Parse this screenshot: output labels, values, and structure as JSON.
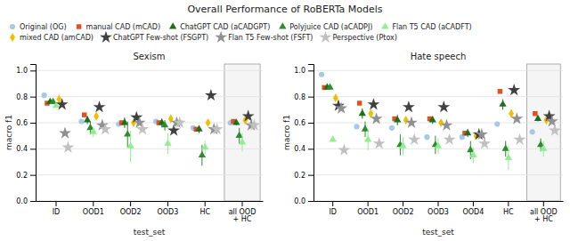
{
  "title": "Overall Performance of RoBERTa Models",
  "chart_data": [
    {
      "type": "scatter",
      "title": "Sexism",
      "xlabel": "test_set",
      "ylabel": "macro f1",
      "categories": [
        "ID",
        "OOD1",
        "OOD2",
        "OOD3",
        "HC",
        "all OOD\n+ HC"
      ],
      "ylim": [
        0.0,
        1.05
      ],
      "yticks": [
        {
          "value": 0.0,
          "label": "0.0"
        },
        0.2,
        0.4,
        0.6,
        0.8,
        {
          "value": 1.0,
          "label": "1.0"
        }
      ],
      "grid": true,
      "series": [
        {
          "name": "Original (OG)",
          "color": "#a8c8e8",
          "marker": "circle",
          "values": [
            0.81,
            0.61,
            0.59,
            0.61,
            0.56,
            0.6
          ],
          "errors": [
            0.0,
            0.0,
            0.0,
            0.0,
            0.0,
            0.0
          ]
        },
        {
          "name": "manual CAD (mCAD)",
          "color": "#e05020",
          "marker": "square",
          "values": [
            0.75,
            0.66,
            0.6,
            0.6,
            0.55,
            0.61
          ],
          "errors": [
            0.0,
            0.0,
            0.0,
            0.0,
            0.0,
            0.0
          ]
        },
        {
          "name": "ChatGPT CAD (aCADGPT)",
          "color": "#1e6e1e",
          "marker": "triangle",
          "values": [
            0.76,
            0.62,
            0.6,
            0.6,
            0.55,
            0.6
          ],
          "errors": [
            0.0,
            0.03,
            0.04,
            0.03,
            0.03,
            0.02
          ]
        },
        {
          "name": "Polyjuice CAD (aCADPJ)",
          "color": "#2e8b2e",
          "marker": "triangle",
          "values": [
            0.76,
            0.56,
            0.51,
            0.58,
            0.35,
            0.5
          ],
          "errors": [
            0.0,
            0.05,
            0.1,
            0.04,
            0.08,
            0.06
          ]
        },
        {
          "name": "Flan T5 CAD (aCADFT)",
          "color": "#90ee90",
          "marker": "triangle",
          "values": [
            0.73,
            0.53,
            0.42,
            0.44,
            0.41,
            0.45
          ],
          "errors": [
            0.0,
            0.04,
            0.12,
            0.08,
            0.05,
            0.07
          ]
        },
        {
          "name": "mixed CAD (amCAD)",
          "color": "#f0c000",
          "marker": "diamond",
          "values": [
            0.78,
            0.65,
            0.6,
            0.63,
            0.6,
            0.62
          ],
          "errors": [
            0.0,
            0.02,
            0.02,
            0.02,
            0.02,
            0.01
          ]
        },
        {
          "name": "ChatGPT Few-shot (FSGPT)",
          "color": "#404040",
          "marker": "star",
          "values": [
            0.74,
            0.72,
            0.64,
            0.54,
            0.81,
            0.65
          ],
          "errors": [
            0.0,
            0.0,
            0.0,
            0.0,
            0.0,
            0.0
          ]
        },
        {
          "name": "Flan T5 Few-shot (FSFT)",
          "color": "#909090",
          "marker": "star",
          "values": [
            0.52,
            0.58,
            0.6,
            0.6,
            0.55,
            0.58
          ],
          "errors": [
            0.0,
            0.0,
            0.0,
            0.0,
            0.0,
            0.0
          ]
        },
        {
          "name": "Perspective (Ptox)",
          "color": "#c0c0c0",
          "marker": "star",
          "values": [
            0.41,
            0.55,
            0.55,
            0.6,
            0.55,
            0.58
          ],
          "errors": [
            0.0,
            0.0,
            0.0,
            0.0,
            0.0,
            0.0
          ]
        }
      ]
    },
    {
      "type": "scatter",
      "title": "Hate speech",
      "xlabel": "test_set",
      "ylabel": "macro f1",
      "categories": [
        "ID",
        "OOD1",
        "OOD2",
        "OOD3",
        "OOD4",
        "HC",
        "all OOD\n+ HC"
      ],
      "ylim": [
        0.0,
        1.05
      ],
      "yticks": [
        {
          "value": 0.0,
          "label": "0.0"
        },
        0.2,
        0.4,
        0.6,
        0.8,
        {
          "value": 1.0,
          "label": "1.0"
        }
      ],
      "grid": true,
      "series": [
        {
          "color": "#a8c8e8",
          "marker": "circle",
          "values": [
            0.97,
            0.57,
            0.56,
            0.49,
            0.49,
            0.59,
            0.53
          ],
          "errors": [
            0.0,
            0.0,
            0.0,
            0.0,
            0.0,
            0.0,
            0.0
          ]
        },
        {
          "color": "#e05020",
          "marker": "square",
          "values": [
            0.87,
            0.75,
            0.63,
            0.63,
            0.52,
            0.84,
            0.67
          ],
          "errors": [
            0.0,
            0.0,
            0.0,
            0.0,
            0.0,
            0.0,
            0.0
          ]
        },
        {
          "color": "#1e6e1e",
          "marker": "triangle",
          "values": [
            0.87,
            0.67,
            0.62,
            0.62,
            0.52,
            0.74,
            0.63
          ],
          "errors": [
            0.0,
            0.04,
            0.04,
            0.03,
            0.03,
            0.04,
            0.02
          ]
        },
        {
          "color": "#2e8b2e",
          "marker": "triangle",
          "values": [
            0.87,
            0.55,
            0.43,
            0.43,
            0.39,
            0.4,
            0.43
          ],
          "errors": [
            0.0,
            0.06,
            0.08,
            0.07,
            0.07,
            0.06,
            0.05
          ]
        },
        {
          "color": "#90ee90",
          "marker": "triangle",
          "values": [
            0.47,
            0.47,
            0.42,
            0.42,
            0.35,
            0.33,
            0.4
          ],
          "errors": [
            0.0,
            0.08,
            0.07,
            0.06,
            0.06,
            0.09,
            0.06
          ]
        },
        {
          "color": "#f0c000",
          "marker": "diamond",
          "values": [
            0.79,
            0.67,
            0.62,
            0.6,
            0.5,
            0.67,
            0.62
          ],
          "errors": [
            0.0,
            0.02,
            0.02,
            0.02,
            0.02,
            0.03,
            0.01
          ]
        },
        {
          "color": "#404040",
          "marker": "star",
          "values": [
            0.73,
            0.74,
            0.72,
            0.72,
            0.51,
            0.85,
            0.65
          ],
          "errors": [
            0.0,
            0.0,
            0.0,
            0.0,
            0.0,
            0.0,
            0.0
          ]
        },
        {
          "color": "#909090",
          "marker": "star",
          "values": [
            0.71,
            0.63,
            0.6,
            0.58,
            0.51,
            0.63,
            0.61
          ],
          "errors": [
            0.0,
            0.0,
            0.0,
            0.0,
            0.0,
            0.0,
            0.0
          ]
        },
        {
          "color": "#c0c0c0",
          "marker": "star",
          "values": [
            0.39,
            0.44,
            0.47,
            0.47,
            0.44,
            0.47,
            0.54
          ],
          "errors": [
            0.0,
            0.0,
            0.0,
            0.0,
            0.0,
            0.0,
            0.0
          ]
        }
      ]
    }
  ]
}
